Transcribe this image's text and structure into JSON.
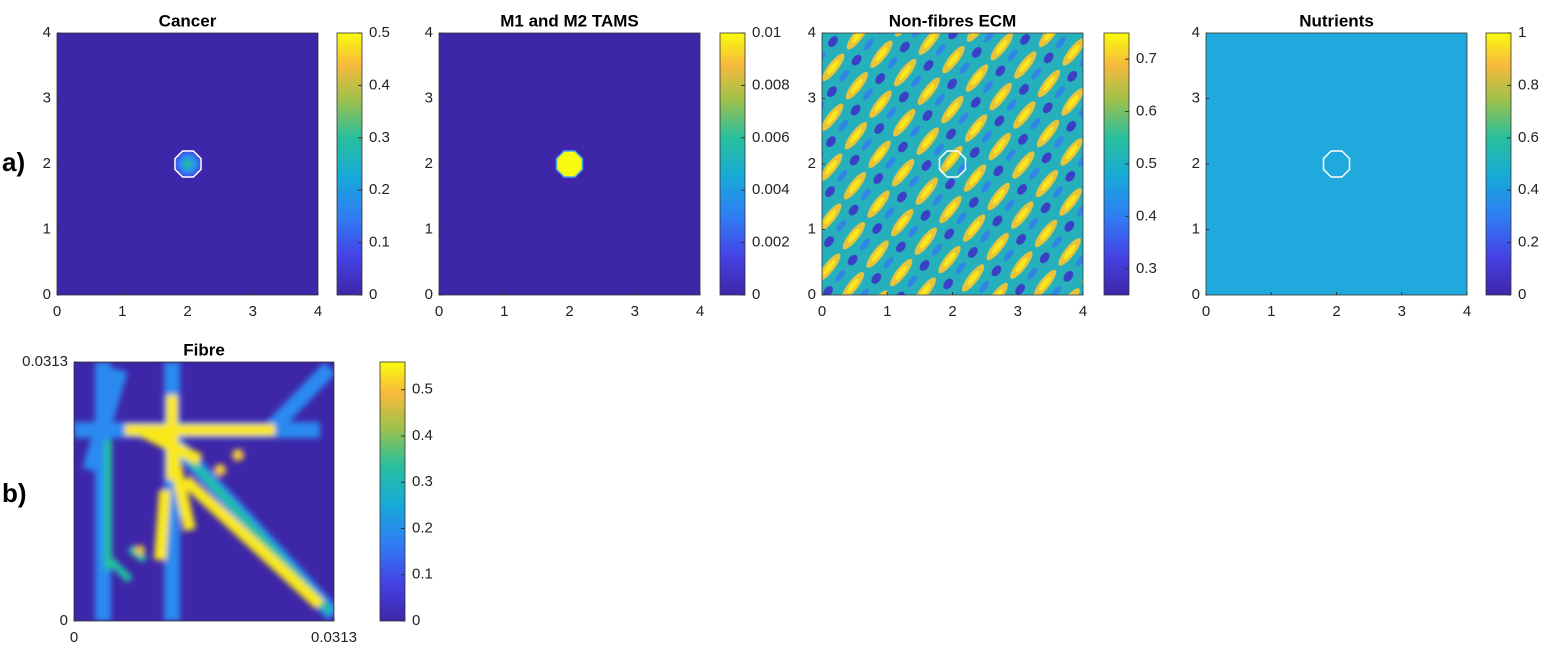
{
  "panel_labels": [
    "a)",
    "b)"
  ],
  "chart_data": [
    {
      "type": "heatmap",
      "title": "Cancer",
      "color": "#3e26a8",
      "xlim": [
        0,
        4
      ],
      "ylim": [
        0,
        4
      ],
      "xticks": [
        0,
        1,
        2,
        3,
        4
      ],
      "yticks": [
        0,
        1,
        2,
        3,
        4
      ],
      "clim": [
        0,
        0.5
      ],
      "cticks": [
        0,
        0.1,
        0.2,
        0.3,
        0.4,
        0.5
      ]
    },
    {
      "type": "heatmap",
      "title": "M1 and M2 TAMS",
      "color": "#3e26a8",
      "xlim": [
        0,
        4
      ],
      "ylim": [
        0,
        4
      ],
      "xticks": [
        0,
        1,
        2,
        3,
        4
      ],
      "yticks": [
        0,
        1,
        2,
        3,
        4
      ],
      "clim": [
        0,
        0.01
      ],
      "cticks": [
        0,
        0.002,
        0.004,
        0.006,
        0.008,
        0.01
      ]
    },
    {
      "type": "heatmap",
      "title": "Non-fibres ECM",
      "color": "#26b0bc",
      "xlim": [
        0,
        4
      ],
      "ylim": [
        0,
        4
      ],
      "xticks": [
        0,
        1,
        2,
        3,
        4
      ],
      "yticks": [
        0,
        1,
        2,
        3,
        4
      ],
      "clim": [
        0.25,
        0.75
      ],
      "cticks": [
        0.3,
        0.4,
        0.5,
        0.6,
        0.7
      ]
    },
    {
      "type": "heatmap",
      "title": "Nutrients",
      "color": "#20a9dc",
      "xlim": [
        0,
        4
      ],
      "ylim": [
        0,
        4
      ],
      "xticks": [
        0,
        1,
        2,
        3,
        4
      ],
      "yticks": [
        0,
        1,
        2,
        3,
        4
      ],
      "clim": [
        0,
        1
      ],
      "cticks": [
        0,
        0.2,
        0.4,
        0.6,
        0.8,
        1
      ]
    },
    {
      "type": "heatmap",
      "title": "Fibre",
      "color": "#3e26a8",
      "xlim": [
        0,
        0.0313
      ],
      "ylim": [
        0,
        0.0313
      ],
      "xticks": [
        0,
        0.0313
      ],
      "yticks": [
        0,
        0.0313
      ],
      "clim": [
        0,
        0.56
      ],
      "cticks": [
        0,
        0.1,
        0.2,
        0.3,
        0.4,
        0.5
      ]
    }
  ]
}
